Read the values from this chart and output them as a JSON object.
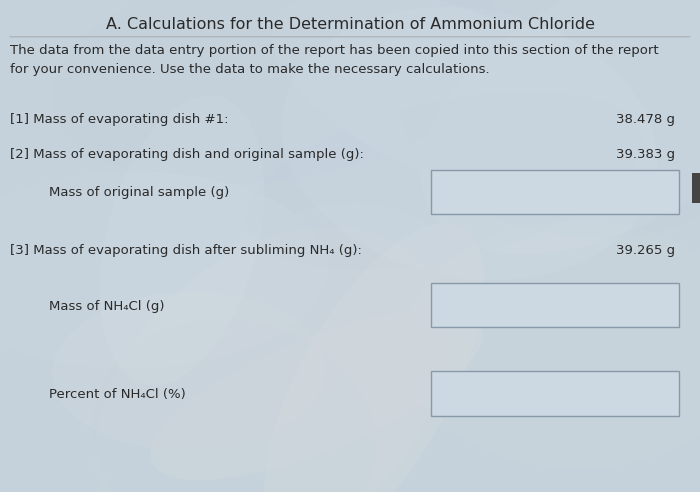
{
  "title": "A. Calculations for the Determination of Ammonium Chloride",
  "intro_text": "The data from the data entry portion of the report has been copied into this section of the report\nfor your convenience. Use the data to make the necessary calculations.",
  "row1_label": "[1] Mass of evaporating dish #1:",
  "row1_value": "38.478 g",
  "row2_label": "[2] Mass of evaporating dish and original sample (g):",
  "row2_value": "39.383 g",
  "row3_label": "Mass of original sample (g)",
  "row4_label": "[3] Mass of evaporating dish after subliming NH₄ (g):",
  "row4_value": "39.265 g",
  "row5_label": "Mass of NH₄Cl (g)",
  "row6_label": "Percent of NH₄Cl (%)",
  "bg_base_color": "#c8d4dc",
  "bg_light_color": "#dde8ee",
  "text_color": "#2a2a2a",
  "box_fill_color": "#ccd8e2",
  "box_edge_color": "#8899aa",
  "title_fontsize": 11.5,
  "body_fontsize": 9.5,
  "fig_width": 7.0,
  "fig_height": 4.92
}
